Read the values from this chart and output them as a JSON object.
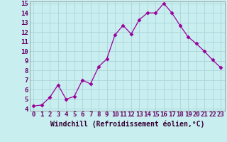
{
  "x": [
    0,
    1,
    2,
    3,
    4,
    5,
    6,
    7,
    8,
    9,
    10,
    11,
    12,
    13,
    14,
    15,
    16,
    17,
    18,
    19,
    20,
    21,
    22,
    23
  ],
  "y": [
    4.3,
    4.4,
    5.2,
    6.5,
    5.0,
    5.3,
    7.0,
    6.6,
    8.4,
    9.2,
    11.7,
    12.7,
    11.8,
    13.3,
    14.0,
    14.0,
    15.0,
    14.0,
    12.7,
    11.5,
    10.8,
    10.0,
    9.1,
    8.3
  ],
  "line_color": "#990099",
  "marker": "D",
  "marker_size": 2.5,
  "bg_color": "#c8eef0",
  "grid_color": "#b0d8da",
  "xlabel": "Windchill (Refroidissement éolien,°C)",
  "xlabel_fontsize": 7,
  "tick_fontsize": 6.5,
  "xlim": [
    -0.5,
    23.5
  ],
  "ylim": [
    3.8,
    15.2
  ],
  "yticks": [
    4,
    5,
    6,
    7,
    8,
    9,
    10,
    11,
    12,
    13,
    14,
    15
  ],
  "xticks": [
    0,
    1,
    2,
    3,
    4,
    5,
    6,
    7,
    8,
    9,
    10,
    11,
    12,
    13,
    14,
    15,
    16,
    17,
    18,
    19,
    20,
    21,
    22,
    23
  ]
}
